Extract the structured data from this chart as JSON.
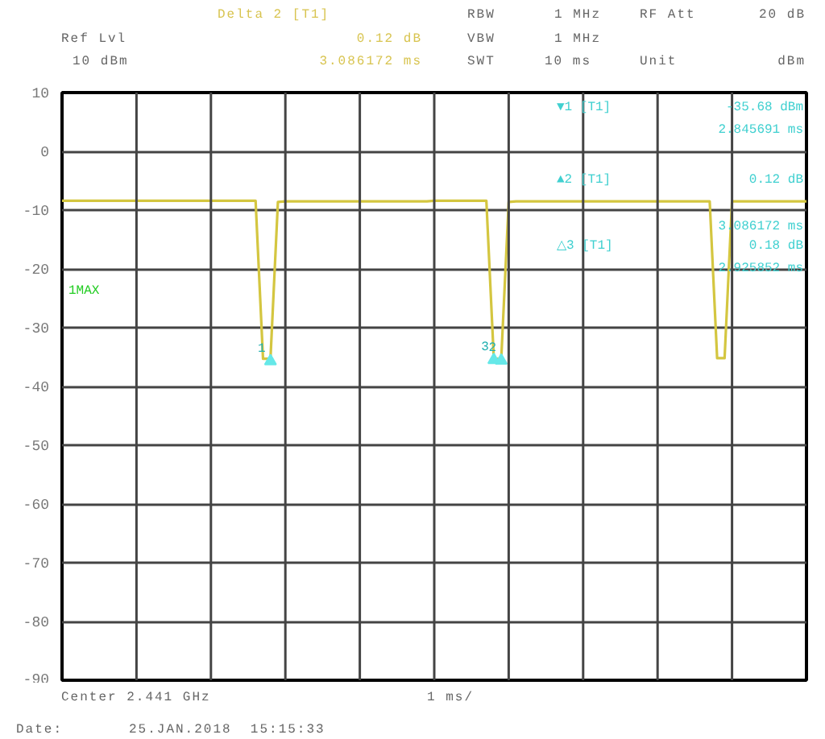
{
  "chart_data": {
    "type": "line",
    "categories": [
      null,
      null,
      null,
      null,
      null,
      null,
      null,
      null,
      null,
      null,
      null,
      null,
      null,
      null,
      null,
      null,
      null,
      null,
      null,
      null,
      null,
      null,
      null,
      null,
      null,
      null,
      null,
      null,
      null,
      null,
      null,
      null,
      null,
      null,
      null,
      null,
      null,
      null,
      null,
      null,
      null,
      null,
      null,
      null,
      null,
      null,
      null,
      null,
      null,
      null,
      null,
      null,
      null,
      null,
      null,
      null,
      null,
      null,
      null,
      null,
      null,
      null,
      null,
      null,
      null,
      null,
      null,
      null,
      null,
      null,
      null,
      null,
      null,
      null,
      null,
      null,
      null,
      null,
      null,
      null,
      null,
      null,
      null,
      null,
      null,
      null,
      null,
      null,
      null,
      null,
      null,
      null,
      null,
      null,
      null,
      null,
      null,
      null,
      null,
      null,
      null
    ],
    "series": [
      {
        "color": "#d4c640",
        "values": [
          -8.4,
          -8.4,
          -8.4,
          -8.4,
          -8.4,
          -8.4,
          -8.4,
          -8.4,
          -8.4,
          -8.4,
          -8.4,
          -8.4,
          -8.4,
          -8.4,
          -8.4,
          -8.4,
          -8.4,
          -8.4,
          -8.4,
          -8.4,
          -8.4,
          -8.4,
          -8.4,
          -8.4,
          -8.4,
          -8.4,
          -8.4,
          -35.3,
          -35.3,
          -8.6,
          -8.5,
          -8.5,
          -8.5,
          -8.5,
          -8.5,
          -8.5,
          -8.5,
          -8.5,
          -8.5,
          -8.5,
          -8.5,
          -8.5,
          -8.5,
          -8.5,
          -8.5,
          -8.5,
          -8.5,
          -8.5,
          -8.5,
          -8.5,
          -8.4,
          -8.4,
          -8.4,
          -8.4,
          -8.4,
          -8.4,
          -8.4,
          -8.4,
          -35.3,
          -35.3,
          -8.6,
          -8.5,
          -8.5,
          -8.5,
          -8.5,
          -8.5,
          -8.5,
          -8.5,
          -8.5,
          -8.5,
          -8.5,
          -8.5,
          -8.5,
          -8.5,
          -8.5,
          -8.5,
          -8.5,
          -8.5,
          -8.5,
          -8.5,
          -8.5,
          -8.5,
          -8.5,
          -8.5,
          -8.5,
          -8.5,
          -8.5,
          -8.5,
          -35.2,
          -35.2,
          -8.5,
          -8.5,
          -8.5,
          -8.5,
          -8.5,
          -8.5,
          -8.5,
          -8.5,
          -8.5,
          -8.5,
          -8.5
        ]
      },
      {
        "type": "scatter",
        "marker": "triangle",
        "color": "#66e8e8",
        "values": [
          null,
          null,
          null,
          null,
          null,
          null,
          null,
          null,
          null,
          null,
          null,
          null,
          null,
          null,
          null,
          null,
          null,
          null,
          null,
          null,
          null,
          null,
          null,
          null,
          null,
          null,
          null,
          null,
          -35.7,
          null,
          null,
          null,
          null,
          null,
          null,
          null,
          null,
          null,
          null,
          null,
          null,
          null,
          null,
          null,
          null,
          null,
          null,
          null,
          null,
          null,
          null,
          null,
          null,
          null,
          null,
          null,
          null,
          null,
          -35.5,
          -35.6,
          null,
          null,
          null,
          null,
          null,
          null,
          null,
          null,
          null,
          null,
          null,
          null,
          null,
          null,
          null,
          null,
          null,
          null,
          null,
          null,
          null,
          null,
          null,
          null,
          null,
          null,
          null,
          null,
          null,
          null,
          null,
          null,
          null,
          null,
          null,
          null,
          null,
          null,
          null,
          null,
          null
        ],
        "name": null
      }
    ],
    "ylim": [
      -90,
      10
    ],
    "yticks": [
      -90,
      -80,
      -70,
      -60,
      -50,
      -40,
      -30,
      -20,
      -10,
      0,
      10
    ],
    "grid": true,
    "line_style": "solid",
    "annotations": [
      "Delta 2 [T1]",
      "0.12 dB",
      "3.086172 ms",
      "RBW",
      "1 MHz",
      "RF Att",
      "20 dB",
      "Ref Lvl",
      "VBW",
      "1 MHz",
      "10 dBm",
      "SWT",
      "10 ms",
      "Unit",
      "dBm",
      "Center 2.441 GHz",
      "1 ms/",
      "Date:",
      "25.JAN.2018  15:15:33",
      "1MAX",
      "▼1 [T1]",
      "-35.68 dBm",
      "2.845691 ms",
      "▲2 [T1]",
      "0.12 dB",
      "3.086172 ms",
      "△3 [T1]",
      "0.18 dB",
      "2.925852 ms",
      "1",
      "3",
      "2"
    ]
  }
}
